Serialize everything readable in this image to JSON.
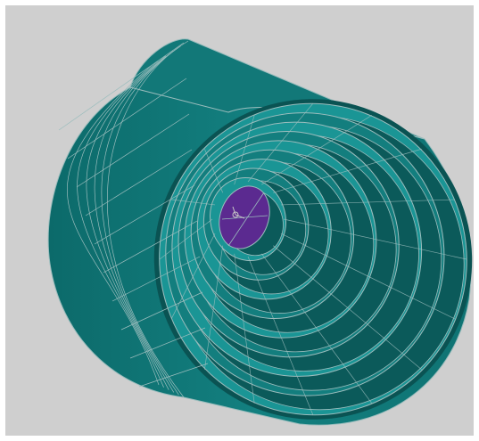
{
  "viewport": {
    "background": "#cfcfcf",
    "model": {
      "shape": "hollow-cylinder-concentric-shells",
      "shell_color": "#137e7e",
      "shell_dark_color": "#0b5a5a",
      "shell_light_color": "#1a9595",
      "mesh_line_color": "#9bbdbd",
      "core_color": "#5b2a90",
      "shell_count": 9,
      "core_visible": true
    },
    "axis_triad_icon": "axis-triad-icon"
  }
}
